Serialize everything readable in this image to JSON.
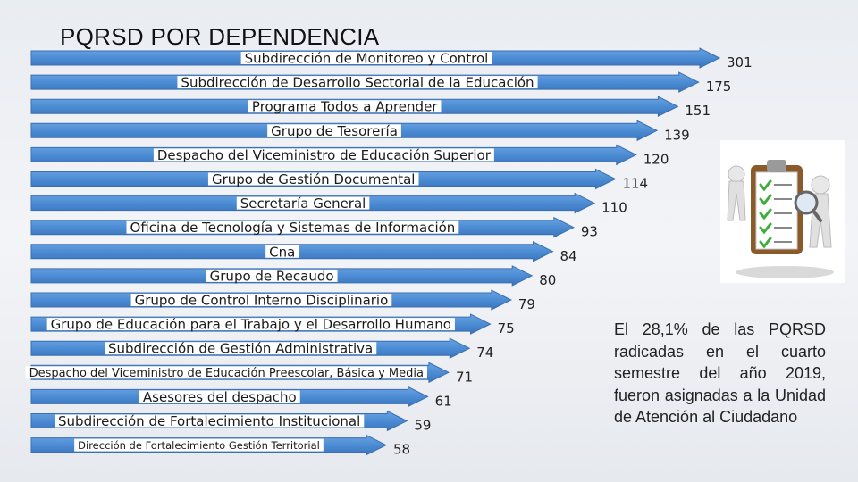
{
  "title": "PQRSD POR DEPENDENCIA",
  "note": "El 28,1% de las PQRSD radicadas en el cuarto semestre del año 2019, fueron asignadas a la Unidad de Atención al Ciudadano",
  "colors": {
    "arrow_fill": "#4a8ad2",
    "arrow_stroke": "#3a6fb0",
    "label_bg": "#ffffff",
    "text": "#1a1a1a"
  },
  "illustration": "clipboard-checklist-magnifier-icon",
  "chart_data": {
    "type": "bar",
    "orientation": "horizontal",
    "title": "PQRSD POR DEPENDENCIA",
    "categories": [
      "Subdirección de Monitoreo y Control",
      "Subdirección de Desarrollo Sectorial de la Educación",
      "Programa Todos a Aprender",
      "Grupo de Tesorería",
      "Despacho del Viceministro de Educación Superior",
      "Grupo de Gestión Documental",
      "Secretaría General",
      "Oficina de Tecnología y Sistemas de Información",
      "Cna",
      "Grupo de Recaudo",
      "Grupo de Control Interno Disciplinario",
      "Grupo de Educación para el Trabajo y el Desarrollo Humano",
      "Subdirección de Gestión Administrativa",
      "Despacho del Viceministro de Educación Preescolar, Básica y Media",
      "Asesores del despacho",
      "Subdirección de Fortalecimiento Institucional",
      "Dirección de Fortalecimiento Gestión Territorial"
    ],
    "values": [
      301,
      175,
      151,
      139,
      120,
      114,
      110,
      93,
      84,
      80,
      79,
      75,
      74,
      71,
      61,
      59,
      58
    ],
    "xlabel": "",
    "ylabel": ""
  }
}
